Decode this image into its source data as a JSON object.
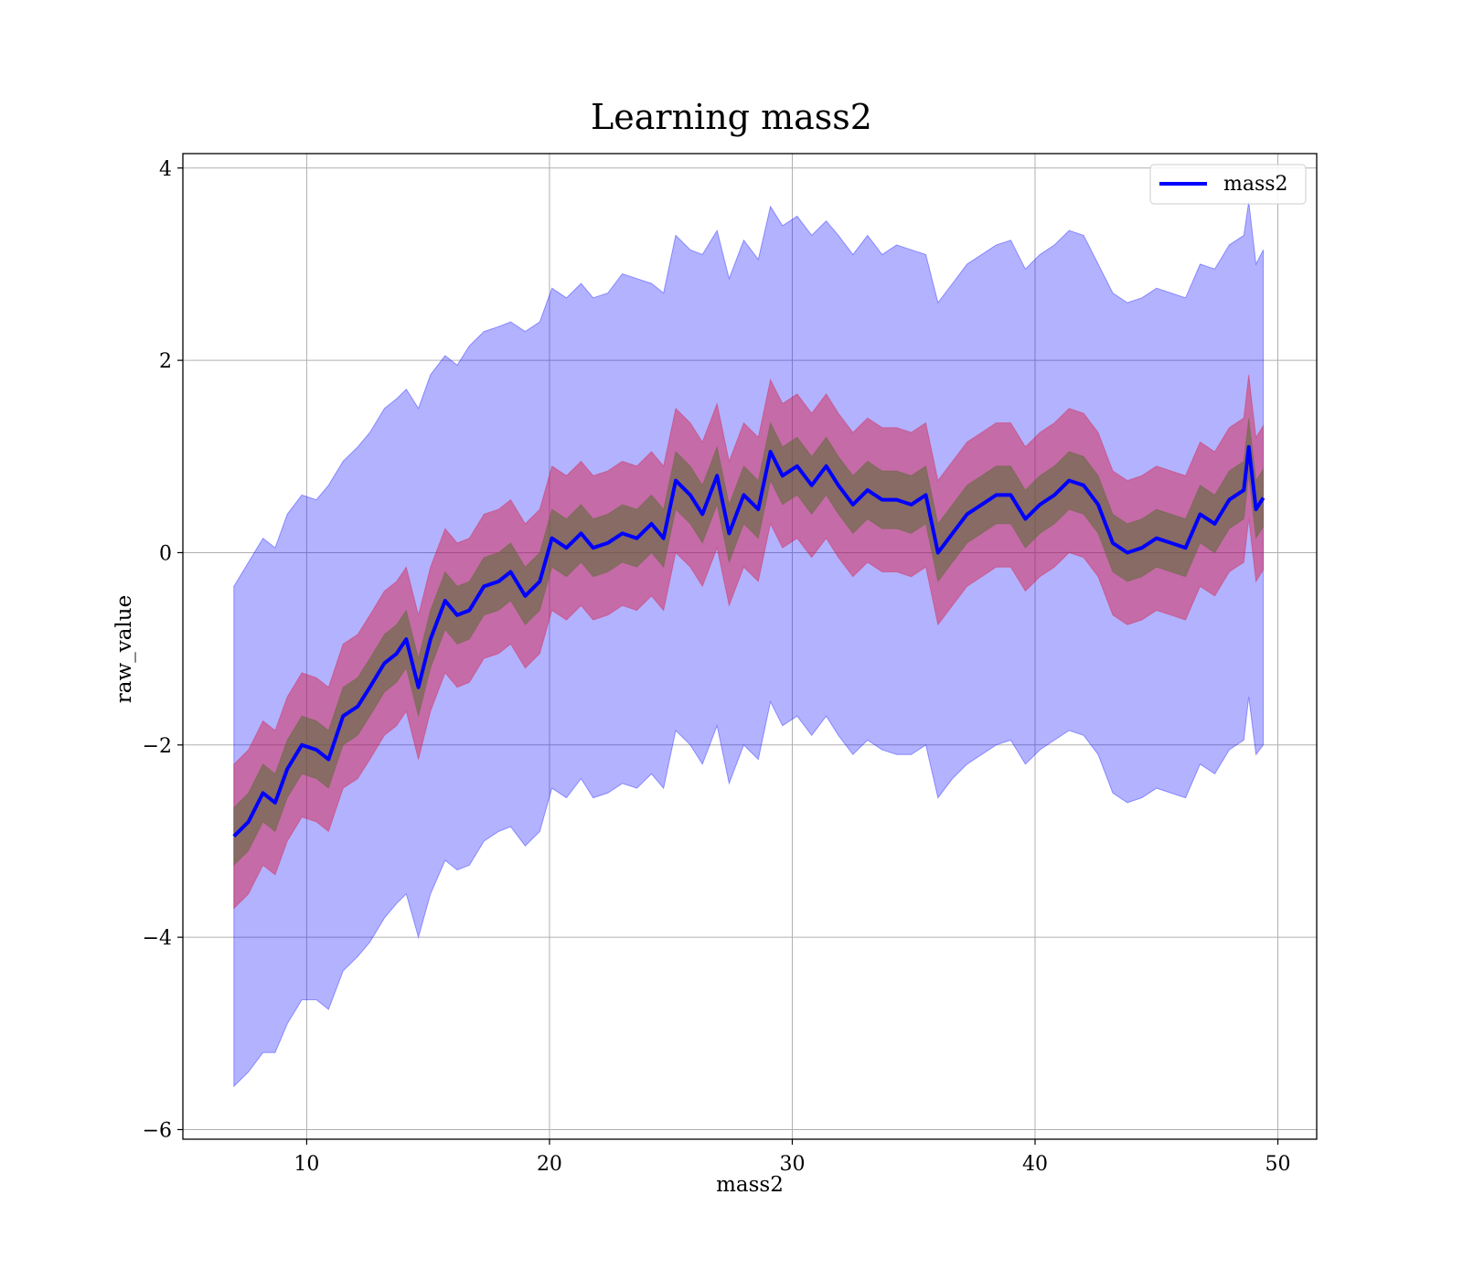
{
  "chart_data": {
    "type": "line",
    "title": "Learning mass2",
    "xlabel": "mass2",
    "ylabel": "raw_value",
    "xlim": [
      4.9,
      51.6
    ],
    "ylim": [
      -6.1,
      4.15
    ],
    "xticks": [
      10,
      20,
      30,
      40,
      50
    ],
    "xtick_labels": [
      "10",
      "20",
      "30",
      "40",
      "50"
    ],
    "yticks": [
      -6,
      -4,
      -2,
      0,
      2,
      4
    ],
    "ytick_labels": [
      "−6",
      "−4",
      "−2",
      "0",
      "2",
      "4"
    ],
    "grid": true,
    "legend": {
      "position": "top-right",
      "entries": [
        "mass2"
      ]
    },
    "colors": {
      "line": "#0000ff",
      "band_outer": "#0000ff",
      "band_middle": "#dc143c",
      "band_inner": "#556b2f"
    },
    "x": [
      7.0,
      7.6,
      8.2,
      8.7,
      9.2,
      9.8,
      10.4,
      10.9,
      11.5,
      12.1,
      12.6,
      13.2,
      13.7,
      14.1,
      14.6,
      15.1,
      15.7,
      16.2,
      16.7,
      17.3,
      17.9,
      18.4,
      19.0,
      19.6,
      20.1,
      20.7,
      21.3,
      21.8,
      22.4,
      23.0,
      23.6,
      24.2,
      24.7,
      25.2,
      25.8,
      26.3,
      26.9,
      27.4,
      28.0,
      28.6,
      29.1,
      29.6,
      30.2,
      30.8,
      31.4,
      31.9,
      32.5,
      33.1,
      33.7,
      34.3,
      34.9,
      35.5,
      36.0,
      36.6,
      37.2,
      37.8,
      38.4,
      39.0,
      39.6,
      40.2,
      40.8,
      41.4,
      42.0,
      42.6,
      43.2,
      43.8,
      44.4,
      45.0,
      45.6,
      46.2,
      46.8,
      47.4,
      48.0,
      48.6,
      48.8,
      49.1,
      49.4
    ],
    "series": [
      {
        "name": "mass2",
        "values": [
          -2.95,
          -2.8,
          -2.5,
          -2.6,
          -2.25,
          -2.0,
          -2.05,
          -2.15,
          -1.7,
          -1.6,
          -1.4,
          -1.15,
          -1.05,
          -0.9,
          -1.4,
          -0.9,
          -0.5,
          -0.65,
          -0.6,
          -0.35,
          -0.3,
          -0.2,
          -0.45,
          -0.3,
          0.15,
          0.05,
          0.2,
          0.05,
          0.1,
          0.2,
          0.15,
          0.3,
          0.15,
          0.75,
          0.6,
          0.4,
          0.8,
          0.2,
          0.6,
          0.45,
          1.05,
          0.8,
          0.9,
          0.7,
          0.9,
          0.7,
          0.5,
          0.65,
          0.55,
          0.55,
          0.5,
          0.6,
          0.0,
          0.2,
          0.4,
          0.5,
          0.6,
          0.6,
          0.35,
          0.5,
          0.6,
          0.75,
          0.7,
          0.5,
          0.1,
          0.0,
          0.05,
          0.15,
          0.1,
          0.05,
          0.4,
          0.3,
          0.55,
          0.65,
          1.1,
          0.45,
          0.57
        ]
      }
    ],
    "bands": [
      {
        "color": "#0000ff",
        "upper": [
          -0.35,
          -0.1,
          0.15,
          0.05,
          0.4,
          0.6,
          0.55,
          0.7,
          0.95,
          1.1,
          1.25,
          1.5,
          1.6,
          1.7,
          1.5,
          1.85,
          2.05,
          1.95,
          2.15,
          2.3,
          2.35,
          2.4,
          2.3,
          2.4,
          2.75,
          2.65,
          2.8,
          2.65,
          2.7,
          2.9,
          2.85,
          2.8,
          2.7,
          3.3,
          3.15,
          3.1,
          3.35,
          2.85,
          3.25,
          3.05,
          3.6,
          3.4,
          3.5,
          3.3,
          3.45,
          3.3,
          3.1,
          3.3,
          3.1,
          3.2,
          3.15,
          3.1,
          2.6,
          2.8,
          3.0,
          3.1,
          3.2,
          3.25,
          2.95,
          3.1,
          3.2,
          3.35,
          3.3,
          3.0,
          2.7,
          2.6,
          2.65,
          2.75,
          2.7,
          2.65,
          3.0,
          2.95,
          3.2,
          3.3,
          3.65,
          3.0,
          3.15
        ]
      },
      {
        "color": "#0000ff",
        "lower": [
          -5.55,
          -5.4,
          -5.2,
          -5.2,
          -4.9,
          -4.65,
          -4.65,
          -4.75,
          -4.35,
          -4.2,
          -4.05,
          -3.8,
          -3.65,
          -3.55,
          -4.0,
          -3.55,
          -3.2,
          -3.3,
          -3.25,
          -3.0,
          -2.9,
          -2.85,
          -3.05,
          -2.9,
          -2.45,
          -2.55,
          -2.35,
          -2.55,
          -2.5,
          -2.4,
          -2.45,
          -2.3,
          -2.45,
          -1.85,
          -2.0,
          -2.2,
          -1.8,
          -2.4,
          -2.0,
          -2.15,
          -1.55,
          -1.8,
          -1.7,
          -1.9,
          -1.7,
          -1.9,
          -2.1,
          -1.95,
          -2.05,
          -2.1,
          -2.1,
          -2.0,
          -2.55,
          -2.35,
          -2.2,
          -2.1,
          -2.0,
          -1.95,
          -2.2,
          -2.05,
          -1.95,
          -1.85,
          -1.9,
          -2.1,
          -2.5,
          -2.6,
          -2.55,
          -2.45,
          -2.5,
          -2.55,
          -2.2,
          -2.3,
          -2.05,
          -1.95,
          -1.5,
          -2.1,
          -2.0
        ]
      },
      {
        "color": "#dc143c",
        "upper": [
          -2.2,
          -2.05,
          -1.75,
          -1.85,
          -1.5,
          -1.25,
          -1.3,
          -1.4,
          -0.95,
          -0.85,
          -0.65,
          -0.4,
          -0.3,
          -0.15,
          -0.65,
          -0.15,
          0.25,
          0.1,
          0.15,
          0.4,
          0.45,
          0.55,
          0.3,
          0.45,
          0.9,
          0.8,
          0.95,
          0.8,
          0.85,
          0.95,
          0.9,
          1.05,
          0.9,
          1.5,
          1.35,
          1.15,
          1.55,
          0.95,
          1.35,
          1.2,
          1.8,
          1.55,
          1.65,
          1.45,
          1.65,
          1.45,
          1.25,
          1.4,
          1.3,
          1.3,
          1.25,
          1.35,
          0.75,
          0.95,
          1.15,
          1.25,
          1.35,
          1.35,
          1.1,
          1.25,
          1.35,
          1.5,
          1.45,
          1.25,
          0.85,
          0.75,
          0.8,
          0.9,
          0.85,
          0.8,
          1.15,
          1.05,
          1.3,
          1.4,
          1.85,
          1.2,
          1.32
        ]
      },
      {
        "color": "#dc143c",
        "lower": [
          -3.7,
          -3.55,
          -3.25,
          -3.35,
          -3.0,
          -2.75,
          -2.8,
          -2.9,
          -2.45,
          -2.35,
          -2.15,
          -1.9,
          -1.8,
          -1.65,
          -2.15,
          -1.65,
          -1.25,
          -1.4,
          -1.35,
          -1.1,
          -1.05,
          -0.95,
          -1.2,
          -1.05,
          -0.6,
          -0.7,
          -0.55,
          -0.7,
          -0.65,
          -0.55,
          -0.6,
          -0.45,
          -0.6,
          0.0,
          -0.15,
          -0.35,
          0.05,
          -0.55,
          -0.15,
          -0.3,
          0.3,
          0.05,
          0.15,
          -0.05,
          0.15,
          -0.05,
          -0.25,
          -0.1,
          -0.2,
          -0.2,
          -0.25,
          -0.15,
          -0.75,
          -0.55,
          -0.35,
          -0.25,
          -0.15,
          -0.15,
          -0.4,
          -0.25,
          -0.15,
          0.0,
          -0.05,
          -0.25,
          -0.65,
          -0.75,
          -0.7,
          -0.6,
          -0.65,
          -0.7,
          -0.35,
          -0.45,
          -0.2,
          -0.1,
          0.35,
          -0.3,
          -0.18
        ]
      },
      {
        "color": "#556b2f",
        "upper": [
          -2.65,
          -2.5,
          -2.2,
          -2.3,
          -1.95,
          -1.7,
          -1.75,
          -1.85,
          -1.4,
          -1.3,
          -1.1,
          -0.85,
          -0.75,
          -0.6,
          -1.1,
          -0.6,
          -0.2,
          -0.35,
          -0.3,
          -0.05,
          0.0,
          0.1,
          -0.15,
          0.0,
          0.45,
          0.35,
          0.5,
          0.35,
          0.4,
          0.5,
          0.45,
          0.6,
          0.45,
          1.05,
          0.9,
          0.7,
          1.1,
          0.5,
          0.9,
          0.75,
          1.35,
          1.1,
          1.2,
          1.0,
          1.2,
          1.0,
          0.8,
          0.95,
          0.85,
          0.85,
          0.8,
          0.9,
          0.3,
          0.5,
          0.7,
          0.8,
          0.9,
          0.9,
          0.65,
          0.8,
          0.9,
          1.05,
          1.0,
          0.8,
          0.4,
          0.3,
          0.35,
          0.45,
          0.4,
          0.35,
          0.7,
          0.6,
          0.85,
          0.95,
          1.4,
          0.75,
          0.87
        ]
      },
      {
        "color": "#556b2f",
        "lower": [
          -3.25,
          -3.1,
          -2.8,
          -2.9,
          -2.55,
          -2.3,
          -2.35,
          -2.45,
          -2.0,
          -1.9,
          -1.7,
          -1.45,
          -1.35,
          -1.2,
          -1.7,
          -1.2,
          -0.8,
          -0.95,
          -0.9,
          -0.65,
          -0.6,
          -0.5,
          -0.75,
          -0.6,
          -0.15,
          -0.25,
          -0.1,
          -0.25,
          -0.2,
          -0.1,
          -0.15,
          0.0,
          -0.15,
          0.45,
          0.3,
          0.1,
          0.5,
          -0.1,
          0.3,
          0.15,
          0.75,
          0.5,
          0.6,
          0.4,
          0.6,
          0.4,
          0.2,
          0.35,
          0.25,
          0.25,
          0.2,
          0.3,
          -0.3,
          -0.1,
          0.1,
          0.2,
          0.3,
          0.3,
          0.05,
          0.2,
          0.3,
          0.45,
          0.4,
          0.2,
          -0.2,
          -0.3,
          -0.25,
          -0.15,
          -0.2,
          -0.25,
          0.1,
          0.0,
          0.25,
          0.35,
          0.8,
          0.15,
          0.27
        ]
      }
    ]
  }
}
